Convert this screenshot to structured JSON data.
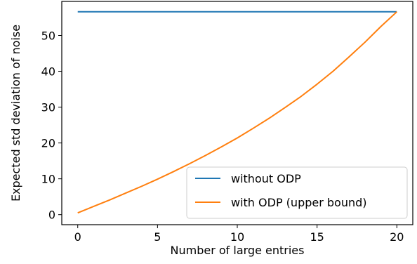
{
  "chart_data": {
    "type": "line",
    "title": "",
    "xlabel": "Number of large entries",
    "ylabel": "Expected std deviation of noise",
    "xlim": [
      -1,
      21
    ],
    "ylim": [
      -2.8,
      59.5
    ],
    "xticks": [
      0,
      5,
      10,
      15,
      20
    ],
    "yticks": [
      0,
      10,
      20,
      30,
      40,
      50
    ],
    "grid": false,
    "legend_position": "lower-right",
    "series": [
      {
        "name": "without ODP",
        "color": "#1f77b4",
        "x": [
          0,
          20
        ],
        "y": [
          56.6,
          56.6
        ]
      },
      {
        "name": "with ODP (upper bound)",
        "color": "#ff7f0e",
        "x": [
          0,
          1,
          2,
          3,
          4,
          5,
          6,
          7,
          8,
          9,
          10,
          11,
          12,
          13,
          14,
          15,
          16,
          17,
          18,
          19,
          20
        ],
        "y": [
          0.5,
          2.3,
          4.1,
          6.0,
          7.9,
          9.9,
          12.0,
          14.2,
          16.5,
          18.9,
          21.4,
          24.1,
          26.9,
          29.9,
          33.0,
          36.4,
          40.0,
          44.0,
          48.1,
          52.5,
          56.6
        ]
      }
    ]
  }
}
